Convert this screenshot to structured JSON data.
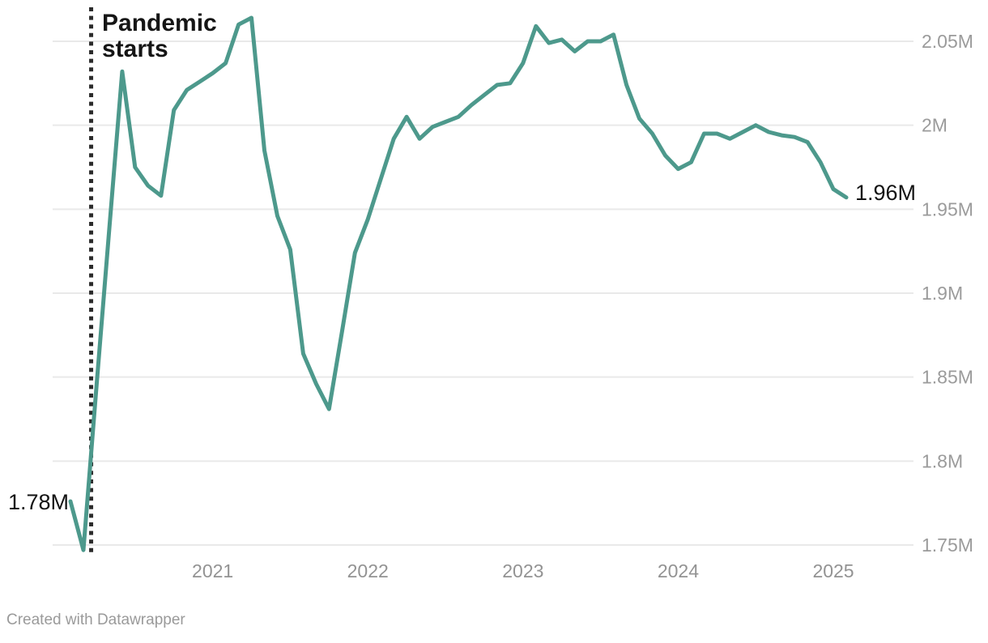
{
  "annotation": {
    "vline_label": "Pandemic starts"
  },
  "point_labels": {
    "start": "1.78M",
    "end": "1.96M"
  },
  "footer": {
    "credit": "Created with Datawrapper"
  },
  "chart_data": {
    "type": "line",
    "unit": "M",
    "x_monthly_start": "2020-02",
    "x_monthly_end": "2025-02",
    "values": [
      1.776,
      1.747,
      1.843,
      1.938,
      2.032,
      1.975,
      1.964,
      1.958,
      2.009,
      2.021,
      2.026,
      2.031,
      2.037,
      2.06,
      2.064,
      1.985,
      1.946,
      1.926,
      1.864,
      1.846,
      1.831,
      1.877,
      1.924,
      1.944,
      1.968,
      1.992,
      2.005,
      1.992,
      1.999,
      2.002,
      2.005,
      2.012,
      2.018,
      2.024,
      2.025,
      2.037,
      2.059,
      2.049,
      2.051,
      2.044,
      2.05,
      2.05,
      2.054,
      2.024,
      2.004,
      1.995,
      1.982,
      1.974,
      1.978,
      1.995,
      1.995,
      1.992,
      1.996,
      2.0,
      1.996,
      1.994,
      1.993,
      1.99,
      1.978,
      1.962,
      1.957
    ],
    "start_value_label": "1.78M",
    "end_value_label": "1.96M",
    "x_tick_labels": [
      {
        "month_index": 11,
        "label": "2021"
      },
      {
        "month_index": 23,
        "label": "2022"
      },
      {
        "month_index": 35,
        "label": "2023"
      },
      {
        "month_index": 47,
        "label": "2024"
      },
      {
        "month_index": 59,
        "label": "2025"
      }
    ],
    "y_ticks": [
      {
        "value": 1.75,
        "label": "1.75M"
      },
      {
        "value": 1.8,
        "label": "1.8M"
      },
      {
        "value": 1.85,
        "label": "1.85M"
      },
      {
        "value": 1.9,
        "label": "1.9M"
      },
      {
        "value": 1.95,
        "label": "1.95M"
      },
      {
        "value": 2.0,
        "label": "2M"
      },
      {
        "value": 2.05,
        "label": "2.05M"
      }
    ],
    "annotation_vline": {
      "month_index": 1.6,
      "label": "Pandemic starts"
    },
    "grid_on": true,
    "legend": "none",
    "colors": {
      "line": "#4D998C",
      "grid": "#E9E9E9",
      "axis_text": "#9B9B9B",
      "vline": "#2B2B2B",
      "annotation_text": "#151515"
    }
  }
}
